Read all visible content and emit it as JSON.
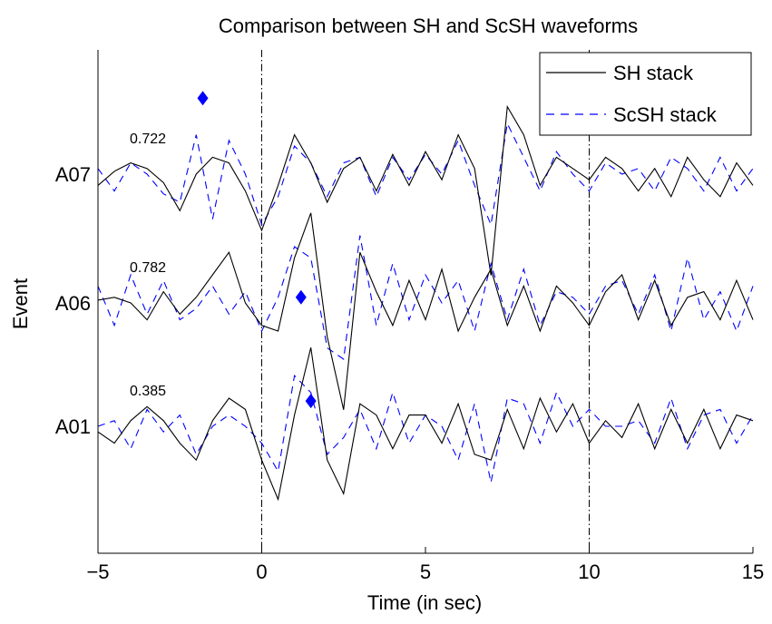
{
  "chart_data": {
    "type": "line",
    "title": "Comparison between SH and ScSH waveforms",
    "xlabel": "Time (in sec)",
    "ylabel": "Event",
    "xlim": [
      -5,
      15
    ],
    "xticks": [
      -5,
      0,
      5,
      10,
      15
    ],
    "xtick_labels": [
      "−5",
      "0",
      "5",
      "10",
      "15"
    ],
    "grid": false,
    "legend": {
      "position": "top-right",
      "entries": [
        {
          "label": "SH stack",
          "color": "#000000",
          "style": "solid"
        },
        {
          "label": "ScSH stack",
          "color": "#0000ff",
          "style": "dashed"
        }
      ]
    },
    "vertical_lines": [
      0,
      10
    ],
    "events": [
      {
        "name": "A07",
        "correlation": "0.722",
        "marker_time": -1.8,
        "marker_offset": 1.35,
        "x": [
          -5.0,
          -4.5,
          -4.0,
          -3.5,
          -3.0,
          -2.5,
          -2.0,
          -1.5,
          -1.0,
          -0.5,
          0.0,
          0.5,
          1.0,
          1.5,
          2.0,
          2.5,
          3.0,
          3.5,
          4.0,
          4.5,
          5.0,
          5.5,
          6.0,
          6.5,
          7.0,
          7.5,
          8.0,
          8.5,
          9.0,
          9.5,
          10.0,
          10.5,
          11.0,
          11.5,
          12.0,
          12.5,
          13.0,
          13.5,
          14.0,
          14.5,
          15.0
        ],
        "sh": [
          -0.2,
          0.05,
          0.2,
          0.1,
          -0.15,
          -0.65,
          0.0,
          0.3,
          0.2,
          -0.3,
          -1.0,
          -0.2,
          0.7,
          0.2,
          -0.5,
          0.1,
          0.3,
          -0.3,
          0.35,
          -0.2,
          0.4,
          -0.1,
          0.7,
          0.1,
          -1.8,
          1.2,
          0.7,
          -0.2,
          0.3,
          0.1,
          -0.1,
          0.3,
          0.1,
          -0.3,
          0.1,
          -0.4,
          0.3,
          -0.1,
          -0.4,
          0.2,
          -0.2
        ],
        "scsh": [
          0.1,
          -0.3,
          0.2,
          0.0,
          -0.35,
          -0.5,
          0.7,
          -0.8,
          0.6,
          0.0,
          -0.9,
          -0.4,
          0.5,
          0.2,
          -0.4,
          0.2,
          0.3,
          -0.4,
          0.3,
          -0.1,
          0.35,
          0.0,
          0.6,
          -0.2,
          -0.9,
          0.9,
          0.3,
          -0.3,
          0.4,
          0.0,
          -0.3,
          0.2,
          0.0,
          0.1,
          -0.3,
          0.3,
          0.1,
          -0.3,
          0.3,
          -0.3,
          0.1
        ]
      },
      {
        "name": "A06",
        "correlation": "0.782",
        "marker_time": 1.2,
        "marker_offset": 0.1,
        "x": [
          -5.0,
          -4.5,
          -4.0,
          -3.5,
          -3.0,
          -2.5,
          -2.0,
          -1.5,
          -1.0,
          -0.5,
          0.0,
          0.5,
          1.0,
          1.5,
          2.0,
          2.5,
          3.0,
          3.5,
          4.0,
          4.5,
          5.0,
          5.5,
          6.0,
          6.5,
          7.0,
          7.5,
          8.0,
          8.5,
          9.0,
          9.5,
          10.0,
          10.5,
          11.0,
          11.5,
          12.0,
          12.5,
          13.0,
          13.5,
          14.0,
          14.5,
          15.0
        ],
        "sh": [
          0.05,
          0.1,
          0.0,
          -0.3,
          0.2,
          -0.2,
          0.1,
          0.5,
          0.9,
          0.0,
          -0.4,
          -0.5,
          0.8,
          1.6,
          -0.6,
          -1.9,
          0.9,
          0.2,
          -0.4,
          0.4,
          -0.3,
          0.6,
          -0.5,
          0.1,
          0.6,
          -0.4,
          0.3,
          -0.5,
          0.3,
          0.0,
          -0.4,
          0.2,
          0.5,
          -0.3,
          0.4,
          -0.4,
          0.1,
          0.2,
          -0.3,
          0.4,
          -0.3
        ],
        "scsh": [
          0.3,
          -0.4,
          0.5,
          -0.2,
          0.4,
          -0.3,
          -0.1,
          0.3,
          -0.2,
          0.2,
          -0.5,
          0.1,
          1.0,
          0.8,
          -0.8,
          -1.0,
          1.2,
          -0.4,
          0.7,
          -0.3,
          0.5,
          0.0,
          0.4,
          -0.5,
          0.7,
          -0.3,
          0.6,
          -0.4,
          0.2,
          0.1,
          -0.2,
          0.3,
          0.4,
          -0.2,
          0.5,
          -0.5,
          0.8,
          -0.3,
          0.2,
          -0.5,
          0.3
        ]
      },
      {
        "name": "A01",
        "correlation": "0.385",
        "marker_time": 1.5,
        "marker_offset": 0.45,
        "x": [
          -5.0,
          -4.5,
          -4.0,
          -3.5,
          -3.0,
          -2.5,
          -2.0,
          -1.5,
          -1.0,
          -0.5,
          0.0,
          0.5,
          1.0,
          1.5,
          2.0,
          2.5,
          3.0,
          3.5,
          4.0,
          4.5,
          5.0,
          5.5,
          6.0,
          6.5,
          7.0,
          7.5,
          8.0,
          8.5,
          9.0,
          9.5,
          10.0,
          10.5,
          11.0,
          11.5,
          12.0,
          12.5,
          13.0,
          13.5,
          14.0,
          14.5,
          15.0
        ],
        "sh": [
          -0.1,
          -0.3,
          0.1,
          0.35,
          0.1,
          -0.3,
          -0.6,
          0.1,
          0.5,
          0.3,
          -0.6,
          -1.3,
          0.2,
          1.4,
          -0.6,
          -1.2,
          0.4,
          0.2,
          -0.4,
          0.2,
          0.2,
          -0.3,
          0.4,
          -0.5,
          -0.6,
          0.3,
          -0.4,
          0.5,
          -0.1,
          0.4,
          -0.3,
          0.1,
          -0.2,
          0.4,
          -0.4,
          0.3,
          -0.3,
          0.3,
          -0.4,
          0.2,
          0.1
        ],
        "scsh": [
          0.0,
          0.1,
          -0.4,
          0.3,
          -0.1,
          0.2,
          -0.5,
          0.0,
          0.2,
          0.0,
          -0.3,
          -0.8,
          0.9,
          0.6,
          -0.5,
          -0.2,
          0.3,
          -0.4,
          0.6,
          -0.3,
          0.2,
          0.0,
          -0.6,
          0.4,
          -1.0,
          0.5,
          0.4,
          -0.3,
          0.6,
          0.0,
          0.3,
          0.0,
          0.0,
          0.1,
          -0.3,
          0.5,
          -0.4,
          0.2,
          0.3,
          -0.3,
          0.2
        ]
      }
    ]
  }
}
